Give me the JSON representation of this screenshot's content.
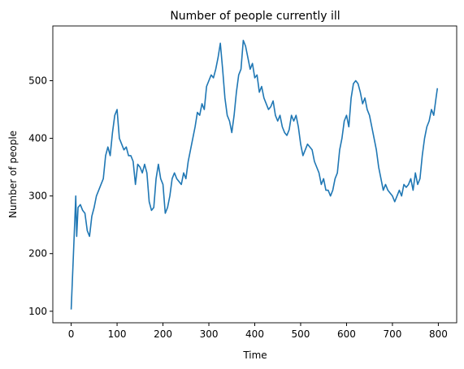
{
  "chart_data": {
    "type": "line",
    "title": "Number of people currently ill",
    "xlabel": "Time",
    "ylabel": "Number of people",
    "x": [
      0,
      5,
      10,
      12,
      15,
      20,
      25,
      30,
      35,
      40,
      45,
      50,
      55,
      60,
      65,
      70,
      75,
      80,
      85,
      90,
      95,
      100,
      105,
      110,
      115,
      120,
      125,
      130,
      135,
      140,
      145,
      150,
      155,
      160,
      165,
      170,
      175,
      180,
      185,
      190,
      195,
      200,
      205,
      210,
      215,
      220,
      225,
      230,
      235,
      240,
      245,
      250,
      255,
      260,
      265,
      270,
      275,
      280,
      285,
      290,
      295,
      300,
      305,
      310,
      315,
      320,
      325,
      330,
      335,
      340,
      345,
      350,
      355,
      360,
      365,
      370,
      375,
      380,
      385,
      390,
      395,
      400,
      405,
      410,
      415,
      420,
      425,
      430,
      435,
      440,
      445,
      450,
      455,
      460,
      465,
      470,
      475,
      480,
      485,
      490,
      495,
      500,
      505,
      510,
      515,
      520,
      525,
      530,
      535,
      540,
      545,
      550,
      555,
      560,
      565,
      570,
      575,
      580,
      585,
      590,
      595,
      600,
      605,
      610,
      615,
      620,
      625,
      630,
      635,
      640,
      645,
      650,
      655,
      660,
      665,
      670,
      675,
      680,
      685,
      690,
      695,
      700,
      705,
      710,
      715,
      720,
      725,
      730,
      735,
      740,
      745,
      750,
      755,
      760,
      765,
      770,
      775,
      780,
      785,
      790,
      795,
      798
    ],
    "series": [
      {
        "name": "ill",
        "color": "#1f77b4",
        "values": [
          103,
          200,
          300,
          230,
          280,
          285,
          275,
          270,
          240,
          230,
          265,
          280,
          300,
          310,
          320,
          330,
          370,
          385,
          370,
          410,
          440,
          450,
          400,
          390,
          380,
          385,
          370,
          370,
          360,
          320,
          355,
          350,
          340,
          355,
          340,
          290,
          275,
          280,
          330,
          355,
          330,
          320,
          270,
          280,
          300,
          330,
          340,
          330,
          325,
          320,
          340,
          330,
          360,
          380,
          400,
          420,
          445,
          440,
          460,
          450,
          490,
          500,
          510,
          505,
          520,
          540,
          565,
          520,
          470,
          440,
          430,
          410,
          440,
          480,
          510,
          520,
          570,
          560,
          540,
          520,
          530,
          505,
          510,
          480,
          490,
          470,
          460,
          450,
          455,
          465,
          440,
          430,
          440,
          420,
          410,
          405,
          415,
          440,
          430,
          440,
          420,
          390,
          370,
          380,
          390,
          385,
          380,
          360,
          350,
          340,
          320,
          330,
          310,
          310,
          300,
          310,
          330,
          340,
          380,
          400,
          430,
          440,
          420,
          470,
          495,
          500,
          495,
          480,
          460,
          470,
          450,
          440,
          420,
          400,
          380,
          350,
          330,
          310,
          320,
          310,
          305,
          300,
          290,
          300,
          310,
          300,
          320,
          315,
          320,
          330,
          310,
          340,
          320,
          330,
          370,
          400,
          420,
          430,
          450,
          440,
          470,
          487
        ]
      }
    ],
    "xlim": [
      -40,
      840
    ],
    "ylim": [
      80,
      595
    ],
    "xticks": [
      0,
      100,
      200,
      300,
      400,
      500,
      600,
      700,
      800
    ],
    "yticks": [
      100,
      200,
      300,
      400,
      500
    ]
  }
}
